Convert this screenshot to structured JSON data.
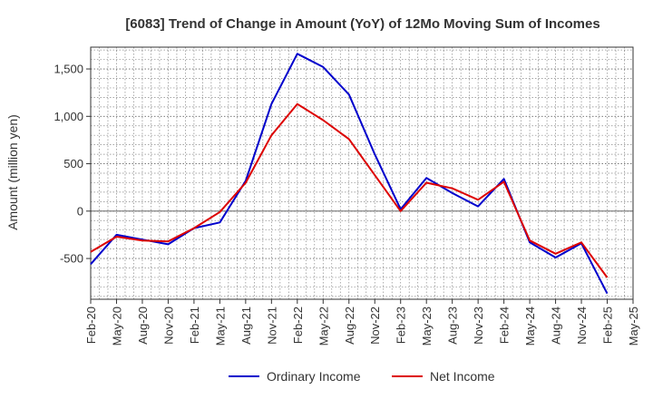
{
  "chart_data": {
    "type": "line",
    "title": "[6083]  Trend of Change in Amount (YoY) of 12Mo Moving Sum of Incomes",
    "xlabel": "",
    "ylabel": "Amount (million yen)",
    "ylim": [
      -930,
      1730
    ],
    "yticks": [
      -500,
      0,
      500,
      1000,
      1500
    ],
    "ytick_labels": [
      "-500",
      "0",
      "500",
      "1,000",
      "1,500"
    ],
    "x_tick_labels": [
      "Feb-20",
      "May-20",
      "Aug-20",
      "Nov-20",
      "Feb-21",
      "May-21",
      "Aug-21",
      "Nov-21",
      "Feb-22",
      "May-22",
      "Aug-22",
      "Nov-22",
      "Feb-23",
      "May-23",
      "Aug-23",
      "Nov-23",
      "Feb-24",
      "May-24",
      "Aug-24",
      "Nov-24",
      "Feb-25",
      "May-25"
    ],
    "grid": true,
    "legend_position": "bottom",
    "series": [
      {
        "name": "Ordinary Income",
        "color": "#0000cc",
        "values": [
          -560,
          -250,
          -300,
          -350,
          -180,
          -120,
          320,
          1130,
          1660,
          1520,
          1230,
          600,
          20,
          350,
          190,
          50,
          340,
          -330,
          -490,
          -340,
          -870
        ]
      },
      {
        "name": "Net Income",
        "color": "#dd0000",
        "values": [
          -430,
          -270,
          -310,
          -320,
          -180,
          -10,
          300,
          800,
          1130,
          960,
          760,
          380,
          0,
          300,
          240,
          120,
          310,
          -310,
          -450,
          -330,
          -700
        ]
      }
    ]
  }
}
